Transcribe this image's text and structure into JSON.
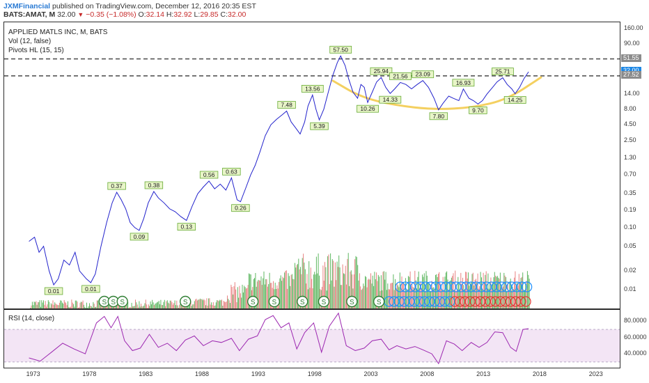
{
  "header": {
    "user": "JXMFinancial",
    "published": "published on TradingView.com, December 12, 2016 20:35 EST",
    "symbol": "BATS:AMAT, M",
    "last": "32.00",
    "change": "−0.35 (−1.08%)",
    "open_label": "O:",
    "open": "32.14",
    "high_label": "H:",
    "high": "32.92",
    "low_label": "L:",
    "low": "29.85",
    "close_label": "C:",
    "close": "32.00"
  },
  "legend": {
    "title": "APPLIED MATLS INC, M, BATS",
    "vol": "Vol (12, false)",
    "pivots": "Pivots HL (15, 15)",
    "rsi": "RSI (14, close)"
  },
  "price_axis": {
    "ticks": [
      "160.00",
      "90.00",
      "50.00",
      "27.00",
      "14.00",
      "8.00",
      "4.50",
      "2.50",
      "1.30",
      "0.70",
      "0.35",
      "0.19",
      "0.10",
      "0.05",
      "0.02",
      "0.01"
    ],
    "tags": [
      {
        "label": "51.55",
        "value": 51.55,
        "color": "#8c8c8c"
      },
      {
        "label": "32.00",
        "value": 32,
        "color": "#1e88e5"
      },
      {
        "label": "27.52",
        "value": 27.52,
        "color": "#8c8c8c"
      }
    ]
  },
  "rsi_axis": {
    "ticks": [
      "80.0000",
      "60.0000",
      "40.0000"
    ]
  },
  "time_axis": {
    "ticks": [
      "1973",
      "1978",
      "1983",
      "1988",
      "1993",
      "1998",
      "2003",
      "2008",
      "2013",
      "2018",
      "2023"
    ]
  },
  "colors": {
    "price_line": "#2222cc",
    "volume_up": "#4caf50",
    "volume_down": "#e57373",
    "pivot_label_bg": "#e8f5c8",
    "pivot_label_border": "#66aa33",
    "arc": "#f4d060",
    "rsi_line": "#9c27b0",
    "rsi_band": "#f3e5f5",
    "dashed": "#555555"
  },
  "chart_data": [
    {
      "type": "line",
      "title": "APPLIED MATLS INC, M, BATS",
      "scale": "log",
      "ylim": [
        0.005,
        200
      ],
      "xlim": [
        1970.3,
        2025
      ],
      "series": [
        {
          "points": [
            [
              1972.5,
              0.06
            ],
            [
              1973.0,
              0.07
            ],
            [
              1973.4,
              0.04
            ],
            [
              1973.8,
              0.05
            ],
            [
              1974.3,
              0.02
            ],
            [
              1974.7,
              0.012
            ],
            [
              1975.1,
              0.015
            ],
            [
              1975.6,
              0.03
            ],
            [
              1976.1,
              0.025
            ],
            [
              1976.6,
              0.04
            ],
            [
              1977.0,
              0.02
            ],
            [
              1977.6,
              0.015
            ],
            [
              1978.0,
              0.013
            ],
            [
              1978.4,
              0.018
            ],
            [
              1978.9,
              0.05
            ],
            [
              1979.4,
              0.12
            ],
            [
              1979.9,
              0.25
            ],
            [
              1980.3,
              0.37
            ],
            [
              1980.7,
              0.28
            ],
            [
              1981.1,
              0.2
            ],
            [
              1981.5,
              0.12
            ],
            [
              1981.9,
              0.1
            ],
            [
              1982.3,
              0.09
            ],
            [
              1982.7,
              0.14
            ],
            [
              1983.1,
              0.25
            ],
            [
              1983.6,
              0.38
            ],
            [
              1984.0,
              0.3
            ],
            [
              1984.5,
              0.25
            ],
            [
              1985.0,
              0.2
            ],
            [
              1985.5,
              0.18
            ],
            [
              1986.0,
              0.15
            ],
            [
              1986.5,
              0.13
            ],
            [
              1987.0,
              0.22
            ],
            [
              1987.5,
              0.35
            ],
            [
              1988.0,
              0.45
            ],
            [
              1988.5,
              0.56
            ],
            [
              1989.0,
              0.42
            ],
            [
              1989.5,
              0.5
            ],
            [
              1990.0,
              0.4
            ],
            [
              1990.5,
              0.63
            ],
            [
              1991.0,
              0.28
            ],
            [
              1991.3,
              0.26
            ],
            [
              1991.8,
              0.45
            ],
            [
              1992.2,
              0.7
            ],
            [
              1992.6,
              1.0
            ],
            [
              1993.0,
              1.6
            ],
            [
              1993.5,
              3.0
            ],
            [
              1994.0,
              4.5
            ],
            [
              1994.5,
              5.5
            ],
            [
              1995.0,
              6.5
            ],
            [
              1995.4,
              7.48
            ],
            [
              1995.8,
              5.0
            ],
            [
              1996.2,
              4.0
            ],
            [
              1996.6,
              3.2
            ],
            [
              1997.0,
              5.0
            ],
            [
              1997.3,
              9.0
            ],
            [
              1997.7,
              13.56
            ],
            [
              1998.0,
              8.0
            ],
            [
              1998.3,
              5.39
            ],
            [
              1998.7,
              8.0
            ],
            [
              1999.1,
              15.0
            ],
            [
              1999.5,
              28.0
            ],
            [
              1999.9,
              45.0
            ],
            [
              2000.2,
              57.5
            ],
            [
              2000.6,
              40.0
            ],
            [
              2000.9,
              25.0
            ],
            [
              2001.3,
              15.0
            ],
            [
              2001.7,
              12.0
            ],
            [
              2002.0,
              20.0
            ],
            [
              2002.3,
              18.0
            ],
            [
              2002.6,
              10.26
            ],
            [
              2003.0,
              15.0
            ],
            [
              2003.4,
              22.0
            ],
            [
              2003.8,
              25.94
            ],
            [
              2004.2,
              18.0
            ],
            [
              2004.6,
              14.33
            ],
            [
              2005.0,
              17.0
            ],
            [
              2005.5,
              21.56
            ],
            [
              2006.0,
              20.0
            ],
            [
              2006.5,
              17.0
            ],
            [
              2007.0,
              20.0
            ],
            [
              2007.5,
              23.09
            ],
            [
              2008.0,
              18.0
            ],
            [
              2008.5,
              12.0
            ],
            [
              2008.9,
              7.8
            ],
            [
              2009.3,
              10.0
            ],
            [
              2009.8,
              13.0
            ],
            [
              2010.2,
              12.0
            ],
            [
              2010.7,
              11.0
            ],
            [
              2011.1,
              16.93
            ],
            [
              2011.6,
              12.0
            ],
            [
              2012.0,
              11.0
            ],
            [
              2012.4,
              9.7
            ],
            [
              2012.8,
              11.0
            ],
            [
              2013.2,
              14.0
            ],
            [
              2013.7,
              18.0
            ],
            [
              2014.1,
              22.0
            ],
            [
              2014.6,
              25.71
            ],
            [
              2015.0,
              20.0
            ],
            [
              2015.4,
              17.0
            ],
            [
              2015.7,
              14.25
            ],
            [
              2016.1,
              18.0
            ],
            [
              2016.5,
              25.0
            ],
            [
              2016.9,
              32.0
            ]
          ]
        }
      ],
      "pivot_labels": [
        {
          "label": "0.01",
          "x": 1974.7,
          "y": 0.012,
          "kind": "low"
        },
        {
          "label": "0.01",
          "x": 1978.0,
          "y": 0.013,
          "kind": "low"
        },
        {
          "label": "0.37",
          "x": 1980.3,
          "y": 0.37,
          "kind": "high"
        },
        {
          "label": "0.09",
          "x": 1982.3,
          "y": 0.09,
          "kind": "low"
        },
        {
          "label": "0.38",
          "x": 1983.6,
          "y": 0.38,
          "kind": "high"
        },
        {
          "label": "0.13",
          "x": 1986.5,
          "y": 0.13,
          "kind": "low"
        },
        {
          "label": "0.56",
          "x": 1988.5,
          "y": 0.56,
          "kind": "high"
        },
        {
          "label": "0.63",
          "x": 1990.5,
          "y": 0.63,
          "kind": "high"
        },
        {
          "label": "0.26",
          "x": 1991.3,
          "y": 0.26,
          "kind": "low"
        },
        {
          "label": "7.48",
          "x": 1995.4,
          "y": 7.48,
          "kind": "high"
        },
        {
          "label": "13.56",
          "x": 1997.7,
          "y": 13.56,
          "kind": "high"
        },
        {
          "label": "5.39",
          "x": 1998.3,
          "y": 5.39,
          "kind": "low"
        },
        {
          "label": "57.50",
          "x": 2000.2,
          "y": 57.5,
          "kind": "high"
        },
        {
          "label": "10.26",
          "x": 2002.6,
          "y": 10.26,
          "kind": "low"
        },
        {
          "label": "25.94",
          "x": 2003.8,
          "y": 25.94,
          "kind": "high"
        },
        {
          "label": "14.33",
          "x": 2004.6,
          "y": 14.33,
          "kind": "low"
        },
        {
          "label": "21.56",
          "x": 2005.5,
          "y": 21.56,
          "kind": "high"
        },
        {
          "label": "23.09",
          "x": 2007.5,
          "y": 23.09,
          "kind": "high"
        },
        {
          "label": "7.80",
          "x": 2008.9,
          "y": 7.8,
          "kind": "low"
        },
        {
          "label": "16.93",
          "x": 2011.1,
          "y": 16.93,
          "kind": "high"
        },
        {
          "label": "9.70",
          "x": 2012.4,
          "y": 9.7,
          "kind": "low"
        },
        {
          "label": "25.71",
          "x": 2014.6,
          "y": 25.71,
          "kind": "high"
        },
        {
          "label": "14.25",
          "x": 2015.7,
          "y": 14.25,
          "kind": "low"
        }
      ],
      "horizontal_lines": [
        51.55,
        27.52
      ],
      "arc": [
        [
          1999.5,
          23.0
        ],
        [
          2002.0,
          12.5
        ],
        [
          2005.0,
          9.3
        ],
        [
          2008.5,
          7.9
        ],
        [
          2012.0,
          8.5
        ],
        [
          2015.0,
          11.5
        ],
        [
          2018.0,
          26.0
        ]
      ],
      "volume_markers": [
        {
          "label": "S",
          "x": 1979.2
        },
        {
          "label": "S",
          "x": 1980.0
        },
        {
          "label": "S",
          "x": 1980.8
        },
        {
          "label": "S",
          "x": 1986.4
        },
        {
          "label": "S",
          "x": 1992.4
        },
        {
          "label": "S",
          "x": 1994.3
        },
        {
          "label": "S",
          "x": 1996.8
        },
        {
          "label": "S",
          "x": 1998.7
        },
        {
          "label": "S",
          "x": 2001.2
        },
        {
          "label": "S",
          "x": 2003.6
        }
      ]
    },
    {
      "type": "line",
      "title": "RSI (14, close)",
      "ylim": [
        23,
        94
      ],
      "band": [
        30,
        70
      ],
      "series": [
        {
          "points": [
            [
              1972.5,
              35
            ],
            [
              1973.5,
              31
            ],
            [
              1974.5,
              42
            ],
            [
              1975.5,
              53
            ],
            [
              1976.5,
              46
            ],
            [
              1977.5,
              40
            ],
            [
              1978.5,
              78
            ],
            [
              1979.2,
              86
            ],
            [
              1979.8,
              72
            ],
            [
              1980.4,
              86
            ],
            [
              1981.0,
              56
            ],
            [
              1981.7,
              44
            ],
            [
              1982.4,
              47
            ],
            [
              1983.2,
              64
            ],
            [
              1984.0,
              48
            ],
            [
              1984.8,
              53
            ],
            [
              1985.6,
              44
            ],
            [
              1986.4,
              57
            ],
            [
              1987.2,
              62
            ],
            [
              1988.0,
              50
            ],
            [
              1988.8,
              56
            ],
            [
              1989.6,
              54
            ],
            [
              1990.5,
              59
            ],
            [
              1991.2,
              44
            ],
            [
              1992.0,
              58
            ],
            [
              1992.8,
              62
            ],
            [
              1993.5,
              82
            ],
            [
              1994.2,
              87
            ],
            [
              1994.9,
              72
            ],
            [
              1995.6,
              78
            ],
            [
              1996.3,
              46
            ],
            [
              1997.0,
              66
            ],
            [
              1997.8,
              78
            ],
            [
              1998.5,
              42
            ],
            [
              1999.2,
              74
            ],
            [
              2000.0,
              90
            ],
            [
              2000.7,
              50
            ],
            [
              2001.5,
              44
            ],
            [
              2002.3,
              47
            ],
            [
              2003.0,
              56
            ],
            [
              2003.8,
              58
            ],
            [
              2004.5,
              45
            ],
            [
              2005.2,
              50
            ],
            [
              2006.0,
              46
            ],
            [
              2006.8,
              49
            ],
            [
              2007.5,
              45
            ],
            [
              2008.3,
              40
            ],
            [
              2008.9,
              28
            ],
            [
              2009.6,
              56
            ],
            [
              2010.3,
              52
            ],
            [
              2011.0,
              44
            ],
            [
              2011.8,
              54
            ],
            [
              2012.5,
              48
            ],
            [
              2013.2,
              54
            ],
            [
              2013.9,
              67
            ],
            [
              2014.6,
              66
            ],
            [
              2015.3,
              48
            ],
            [
              2015.8,
              43
            ],
            [
              2016.4,
              70
            ],
            [
              2016.9,
              71
            ]
          ]
        }
      ]
    }
  ]
}
